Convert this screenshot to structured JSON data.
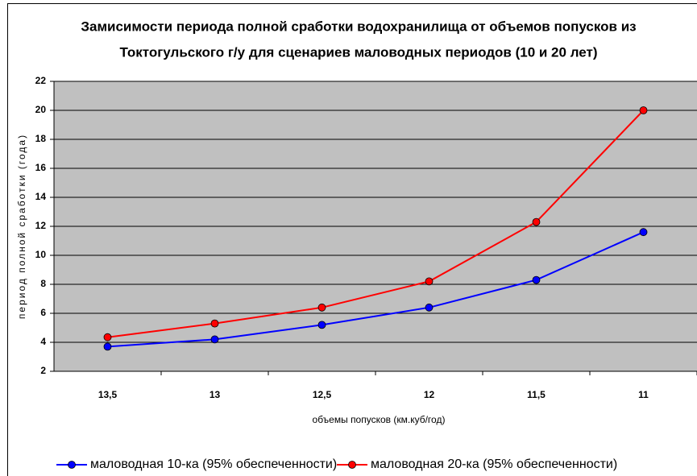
{
  "chart_data": {
    "type": "line",
    "title": [
      "Замисимости периода полной сработки водохранилища от объемов попусков из",
      "Токтогульского г/у для сценариев маловодных периодов (10 и 20 лет)"
    ],
    "x_label": "объемы попусков (км.куб/год)",
    "y_label": "период полной сработки (года)",
    "categories": [
      "13,5",
      "13",
      "12,5",
      "12",
      "11,5",
      "11"
    ],
    "series": [
      {
        "name": "маловодная 10-ка (95% обеспеченности)",
        "color": "#0000ff",
        "values": [
          3.7,
          4.2,
          5.2,
          6.4,
          8.3,
          11.6
        ]
      },
      {
        "name": "маловодная 20-ка (95% обеспеченности)",
        "color": "#ff0000",
        "values": [
          4.35,
          5.3,
          6.4,
          8.2,
          12.3,
          20.0
        ]
      }
    ],
    "ylim": [
      2,
      22
    ],
    "yticks": [
      2,
      4,
      6,
      8,
      10,
      12,
      14,
      16,
      18,
      20,
      22
    ],
    "grid": true,
    "legend": "bottom"
  }
}
